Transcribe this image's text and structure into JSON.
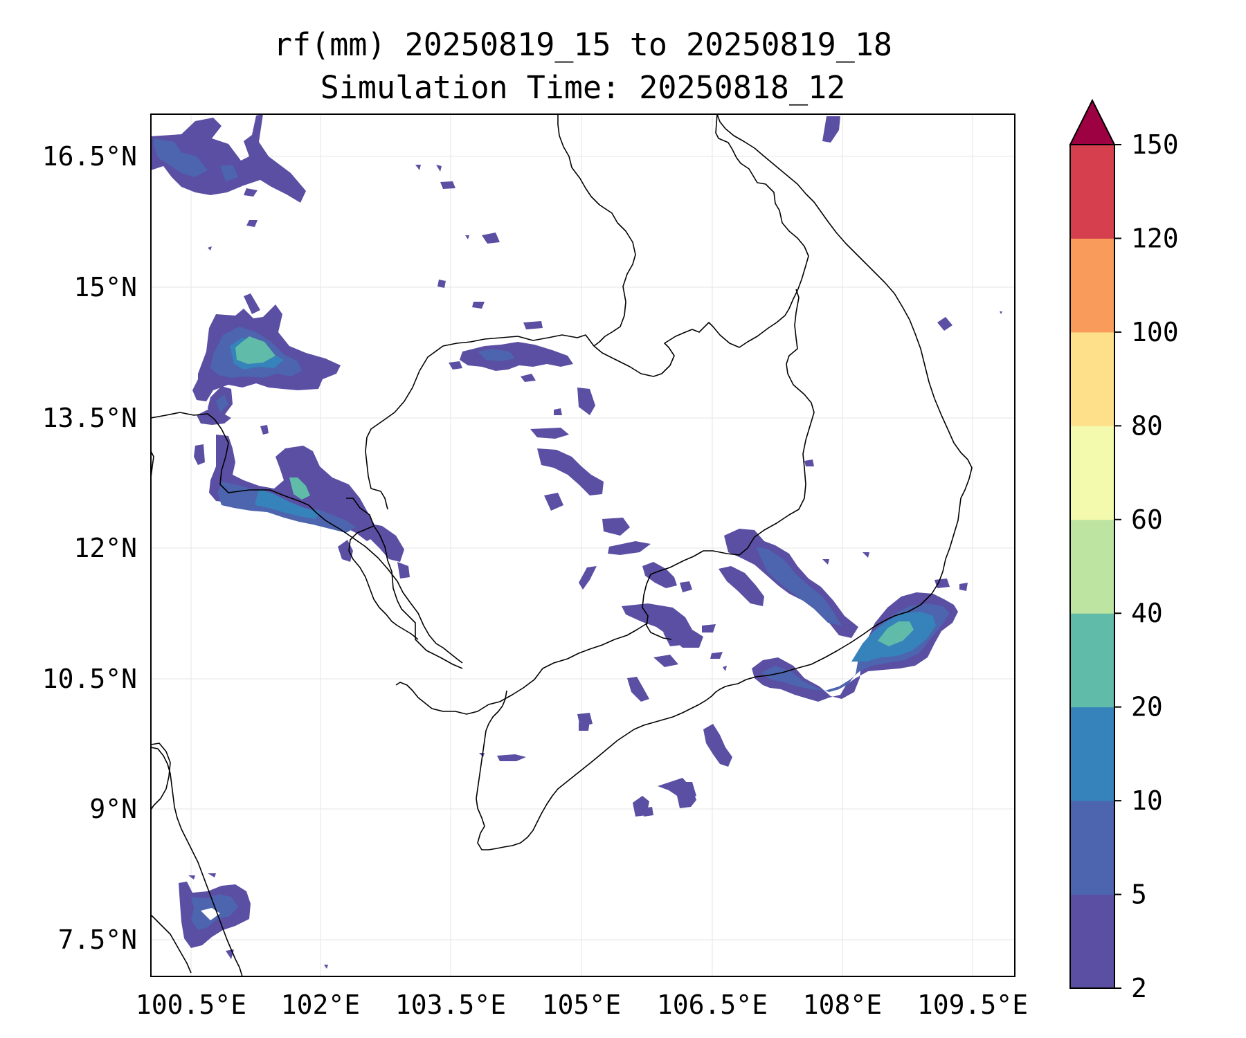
{
  "title": {
    "line1": "rf(mm) 20250819_15 to 20250819_18",
    "line2": "Simulation Time: 20250818_12"
  },
  "map": {
    "lon_range": [
      100.3,
      110.2
    ],
    "lat_range": [
      7.1,
      17.0
    ],
    "gridlines": true,
    "coastlines": true,
    "country_borders": true,
    "x_ticks": [
      "100.5°E",
      "102°E",
      "103.5°E",
      "105°E",
      "106.5°E",
      "108°E",
      "109.5°E"
    ],
    "y_ticks": [
      "16.5°N",
      "15°N",
      "13.5°N",
      "12°N",
      "10.5°N",
      "9°N",
      "7.5°N"
    ]
  },
  "colorbar": {
    "levels": [
      2,
      5,
      10,
      20,
      40,
      60,
      80,
      100,
      120,
      150
    ],
    "labels": [
      "2",
      "5",
      "10",
      "20",
      "40",
      "60",
      "80",
      "100",
      "120",
      "150"
    ],
    "colors": [
      "#5a4fa3",
      "#4d64ae",
      "#3682ba",
      "#60bba8",
      "#bde4a0",
      "#f3faad",
      "#fee08b",
      "#f99b5b",
      "#d6404e",
      "#9e0142"
    ],
    "extend": "max"
  },
  "chart_data": {
    "type": "heatmap",
    "title": "rf(mm) 20250819_15 to 20250819_18",
    "subtitle": "Simulation Time: 20250818_12",
    "x_range": [
      100.3,
      110.2
    ],
    "y_range": [
      7.1,
      17.0
    ],
    "units": "mm",
    "rain_areas": [
      {
        "region": "NW corner (16.1-17.0°N, 100.3-101.9°E)",
        "max_class": "5-10"
      },
      {
        "region": "NE Thailand (13.8-14.9°N, 100.8-102.3°E)",
        "max_class": "20-40"
      },
      {
        "region": "Thai-Cambodia coast (12.3-13.4°N, 101.0-102.6°E)",
        "max_class": "20-40"
      },
      {
        "region": "N Cambodia (14.0-14.3°N, 103.5-104.8°E)",
        "max_class": "5-10"
      },
      {
        "region": "S Vietnam coast (10.5-11.6°N, 107.8-109.3°E)",
        "max_class": "20-40"
      },
      {
        "region": "SE Cambodia / S Vietnam (10.4-12.1°N, 106.1-108.0°E)",
        "max_class": "5-10"
      },
      {
        "region": "Gulf of Thailand south (7.5-8.4°N, 100.6-101.5°E)",
        "max_class": "5-10"
      }
    ]
  }
}
